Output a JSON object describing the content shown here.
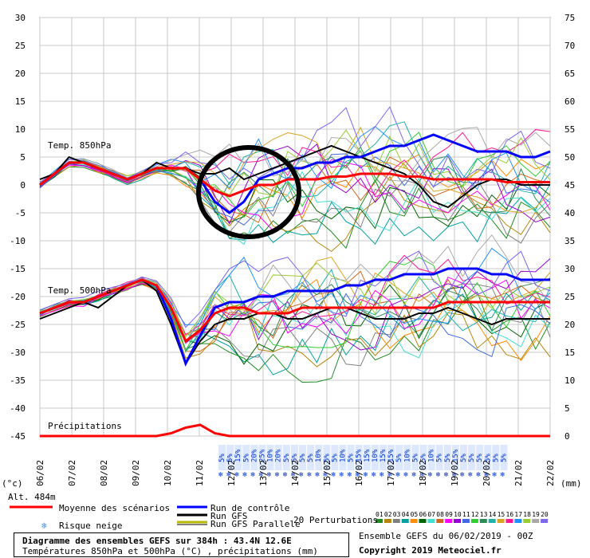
{
  "header": {
    "left_unit": "(°c)",
    "right_unit": "(mm)",
    "altitude": "Alt. 484m"
  },
  "legend": {
    "mean": "Moyenne des scénarios",
    "control": "Run de contrôle",
    "gfs": "Run GFS",
    "gfs_parallel": "Run GFS Parallele",
    "snow_risk": "Risque neige",
    "perturbations": "20 Perturbations",
    "perturbation_ids": [
      "01",
      "02",
      "03",
      "04",
      "05",
      "06",
      "07",
      "08",
      "09",
      "10",
      "11",
      "12",
      "13",
      "14",
      "15",
      "16",
      "17",
      "18",
      "19",
      "20"
    ],
    "perturbation_colors": [
      "#1f8c1f",
      "#b8860b",
      "#808080",
      "#00a0a0",
      "#ff8c00",
      "#006400",
      "#40e0d0",
      "#d2691e",
      "#ff00ff",
      "#9400d3",
      "#4169e1",
      "#32cd32",
      "#2e8b57",
      "#20b2aa",
      "#daa520",
      "#ff1493",
      "#1e90ff",
      "#9acd32",
      "#a9a9a9",
      "#7b68ee"
    ]
  },
  "ensemble_info": "Ensemble GEFS du 06/02/2019 - 00Z",
  "copyright": "Copyright 2019 Meteociel.fr",
  "footer": {
    "title": "Diagramme des ensembles GEFS sur 384h : 43.4N 12.6E",
    "subtitle": "Températures 850hPa et 500hPa (°C) , précipitations (mm)"
  },
  "chart_data": {
    "type": "line",
    "panel_labels": [
      "Temp. 850hPa",
      "Temp. 500hPa",
      "Précipitations"
    ],
    "left_axis": {
      "ticks": [
        30,
        25,
        20,
        15,
        10,
        5,
        0,
        -5,
        -10,
        -15,
        -20,
        -25,
        -30,
        -35,
        -40,
        -45
      ],
      "range": [
        -45,
        30
      ]
    },
    "right_axis": {
      "ticks": [
        75,
        70,
        65,
        60,
        55,
        50,
        45,
        40,
        35,
        30,
        25,
        20,
        15,
        10,
        5,
        0
      ],
      "range": [
        0,
        75
      ]
    },
    "x_dates": [
      "07/02",
      "08/02",
      "09/02",
      "10/02",
      "11/02",
      "12/02",
      "13/02",
      "14/02",
      "15/02",
      "16/02",
      "17/02",
      "18/02",
      "19/02",
      "20/02",
      "21/02",
      "22/02"
    ],
    "x_tick_first": "06/02",
    "snow_risk_percent": [
      "5%",
      "5%",
      "15%",
      "5%",
      "20%",
      "25%",
      "10%",
      "20%",
      "5%",
      "5%",
      "5%",
      "5%",
      "10%",
      "5%",
      "5%",
      "10%",
      "5%",
      "15%",
      "15%",
      "10%",
      "15%",
      "15%",
      "5%",
      "10%",
      "5%",
      "5%",
      "10%",
      "5%",
      "5%",
      "15%",
      "5%",
      "5%",
      "5%",
      "5%",
      "5%",
      "5%"
    ],
    "t850": {
      "mean": [
        0,
        2,
        4,
        4,
        3,
        2,
        1,
        2,
        3,
        3,
        3,
        1,
        -1,
        -2,
        -1,
        0,
        0,
        1,
        1,
        1,
        1.5,
        1.5,
        2,
        2,
        2,
        1.5,
        1.5,
        1,
        1,
        1,
        1,
        1,
        0.5,
        0.5,
        0.5,
        0.5
      ],
      "control": [
        0,
        2,
        4,
        4,
        3,
        2,
        1,
        2,
        3,
        3,
        3,
        1,
        -3,
        -5,
        -3,
        1,
        2,
        3,
        3,
        4,
        4,
        5,
        5,
        6,
        7,
        7,
        8,
        9,
        8,
        7,
        6,
        6,
        6,
        5,
        5,
        6
      ],
      "gfs": [
        1,
        2,
        5,
        4,
        3,
        2,
        1,
        2,
        4,
        3,
        3,
        2,
        2,
        3,
        1,
        2,
        3,
        4,
        5,
        6,
        7,
        6,
        5,
        4,
        3,
        2,
        0,
        -3,
        -4,
        -2,
        0,
        1,
        1,
        0,
        0,
        0
      ]
    },
    "t500": {
      "mean": [
        -23,
        -22,
        -21,
        -21,
        -20,
        -19,
        -18,
        -17,
        -18,
        -22,
        -28,
        -26,
        -23,
        -22,
        -22,
        -23,
        -23,
        -23,
        -22,
        -22,
        -22,
        -22,
        -22,
        -22,
        -22,
        -22,
        -22,
        -22,
        -21,
        -21,
        -21,
        -21,
        -21,
        -21,
        -21,
        -21
      ],
      "control": [
        -23,
        -22,
        -21,
        -21,
        -20,
        -19,
        -18,
        -17,
        -18,
        -24,
        -32,
        -27,
        -22,
        -21,
        -21,
        -20,
        -20,
        -19,
        -19,
        -19,
        -19,
        -18,
        -18,
        -17,
        -17,
        -16,
        -16,
        -16,
        -15,
        -15,
        -15,
        -16,
        -16,
        -17,
        -17,
        -17
      ],
      "gfs": [
        -24,
        -23,
        -22,
        -21,
        -22,
        -20,
        -18,
        -17,
        -19,
        -25,
        -32,
        -28,
        -25,
        -24,
        -24,
        -23,
        -23,
        -24,
        -24,
        -23,
        -22,
        -22,
        -23,
        -24,
        -24,
        -24,
        -23,
        -23,
        -22,
        -23,
        -24,
        -25,
        -24,
        -24,
        -24,
        -24
      ]
    },
    "precip_mean_mm": [
      0,
      0,
      0,
      0,
      0,
      0,
      0,
      0,
      0,
      0.5,
      1.5,
      2,
      0.5,
      0,
      0,
      0,
      0,
      0,
      0,
      0,
      0,
      0,
      0,
      0,
      0,
      0,
      0,
      0,
      0,
      0,
      0,
      0,
      0,
      0,
      0,
      0
    ]
  }
}
